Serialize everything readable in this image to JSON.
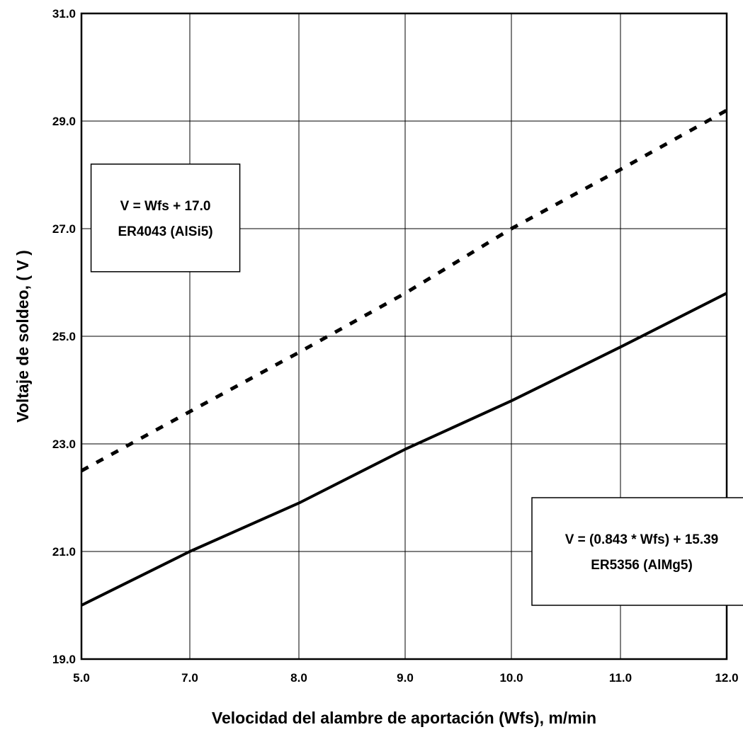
{
  "chart_data": {
    "type": "line",
    "xlabel": "Velocidad del alambre de aportación (Wfs), m/min",
    "ylabel": "Voltaje de soldeo, ( V )",
    "xlim": [
      5.0,
      12.0
    ],
    "ylim": [
      19.0,
      31.0
    ],
    "x_ticks": [
      5.0,
      7.0,
      8.0,
      9.0,
      10.0,
      11.0,
      12.0
    ],
    "x_tick_labels": [
      "5.0",
      "7.0",
      "8.0",
      "9.0",
      "10.0",
      "11.0",
      "12.0"
    ],
    "y_ticks": [
      19.0,
      21.0,
      23.0,
      25.0,
      27.0,
      29.0,
      31.0
    ],
    "y_tick_labels": [
      "19.0",
      "21.0",
      "23.0",
      "25.0",
      "27.0",
      "29.0",
      "31.0"
    ],
    "grid": true,
    "series": [
      {
        "style": "dashed",
        "color": "#000000",
        "x": [
          5.0,
          7.0,
          8.0,
          9.0,
          10.0,
          11.0,
          12.0
        ],
        "y": [
          22.5,
          23.6,
          24.7,
          25.8,
          27.0,
          28.1,
          29.2
        ]
      },
      {
        "style": "solid",
        "color": "#000000",
        "x": [
          5.0,
          7.0,
          8.0,
          9.0,
          10.0,
          11.0,
          12.0
        ],
        "y": [
          20.0,
          21.0,
          21.9,
          22.9,
          23.8,
          24.8,
          25.8
        ]
      }
    ],
    "annotations": [
      {
        "lines": [
          "V =  Wfs  + 17.0",
          "ER4043 (AlSi5)"
        ],
        "at": [
          6.55,
          27.2
        ]
      },
      {
        "lines": [
          "V = (0.843 * Wfs) + 15.39",
          "ER5356 (AlMg5)"
        ],
        "at": [
          11.2,
          21.0
        ]
      }
    ]
  }
}
